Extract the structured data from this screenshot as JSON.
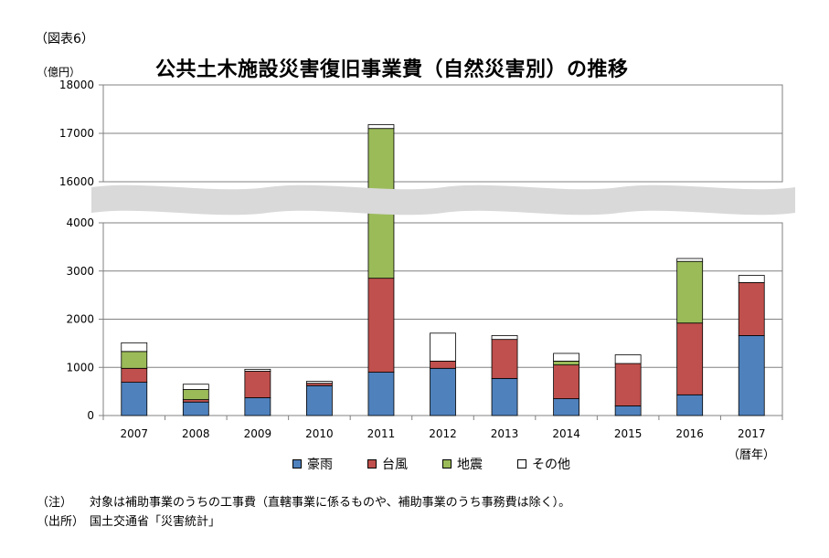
{
  "figure_label": "（図表6）",
  "unit_label": "（億円）",
  "x_unit_label": "（暦年）",
  "note": {
    "label": "（注）",
    "text": "対象は補助事業のうちの工事費（直轄事業に係るものや、補助事業のうち事務費は除く）。"
  },
  "source": {
    "label": "（出所）",
    "text": "国土交通省「災害統計」"
  },
  "colors": {
    "gou": "#4f81bd",
    "taifu": "#c0504d",
    "jishin": "#9bbb59",
    "sonota": "#ffffff",
    "break_band": "#d9d9d9"
  },
  "chart_data": {
    "type": "bar",
    "stacked": true,
    "title": "公共土木施設災害復旧事業費（自然災害別）の推移",
    "xlabel": "",
    "ylabel": "（億円）",
    "categories": [
      "2007",
      "2008",
      "2009",
      "2010",
      "2011",
      "2012",
      "2013",
      "2014",
      "2015",
      "2016",
      "2017"
    ],
    "series": [
      {
        "name": "豪雨",
        "values": [
          690,
          280,
          370,
          620,
          900,
          980,
          770,
          350,
          200,
          430,
          1660
        ]
      },
      {
        "name": "台風",
        "values": [
          290,
          50,
          550,
          50,
          1950,
          150,
          810,
          700,
          880,
          1490,
          1100
        ]
      },
      {
        "name": "地震",
        "values": [
          350,
          210,
          0,
          0,
          14250,
          0,
          0,
          80,
          0,
          1280,
          0
        ]
      },
      {
        "name": "その他",
        "values": [
          180,
          110,
          40,
          40,
          80,
          580,
          80,
          160,
          180,
          60,
          150
        ]
      }
    ],
    "ylim_lower": [
      0,
      4000
    ],
    "ylim_upper": [
      16000,
      18000
    ],
    "yticks": [
      "0",
      "1000",
      "2000",
      "3000",
      "4000",
      "16000",
      "17000",
      "18000"
    ],
    "axis_break": true,
    "grid": true,
    "legend_position": "bottom"
  }
}
